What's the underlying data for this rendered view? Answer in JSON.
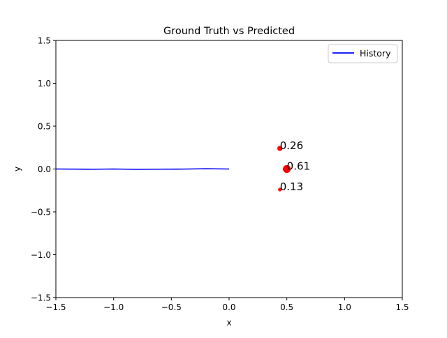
{
  "chart_data": {
    "type": "line",
    "title": "Ground Truth vs Predicted",
    "xlabel": "x",
    "ylabel": "y",
    "xlim": [
      -1.5,
      1.5
    ],
    "ylim": [
      -1.5,
      1.5
    ],
    "xticks": [
      -1.5,
      -1.0,
      -0.5,
      0.0,
      0.5,
      1.0,
      1.5
    ],
    "yticks": [
      -1.5,
      -1.0,
      -0.5,
      0.0,
      0.5,
      1.0,
      1.5
    ],
    "xtick_labels": [
      "−1.5",
      "−1.0",
      "−0.5",
      "0.0",
      "0.5",
      "1.0",
      "1.5"
    ],
    "ytick_labels": [
      "−1.5",
      "−1.0",
      "−0.5",
      "0.0",
      "0.5",
      "1.0",
      "1.5"
    ],
    "grid": false,
    "legend": {
      "placement": "upper-right",
      "entries": [
        "History"
      ]
    },
    "series": [
      {
        "name": "History",
        "kind": "line",
        "color": "#0000ff",
        "x": [
          -1.5,
          -1.2,
          -1.0,
          -0.8,
          -0.6,
          -0.4,
          -0.2,
          0.0
        ],
        "y": [
          0.0,
          -0.003,
          0.0,
          -0.004,
          -0.002,
          -0.001,
          0.003,
          0.0
        ]
      },
      {
        "kind": "scatter",
        "color": "#ff0000",
        "points": [
          {
            "x": 0.44,
            "y": 0.24,
            "weight": 0.26,
            "label": "0.26"
          },
          {
            "x": 0.5,
            "y": 0.0,
            "weight": 0.61,
            "label": "0.61"
          },
          {
            "x": 0.44,
            "y": -0.24,
            "weight": 0.13,
            "label": "0.13"
          }
        ]
      }
    ]
  }
}
